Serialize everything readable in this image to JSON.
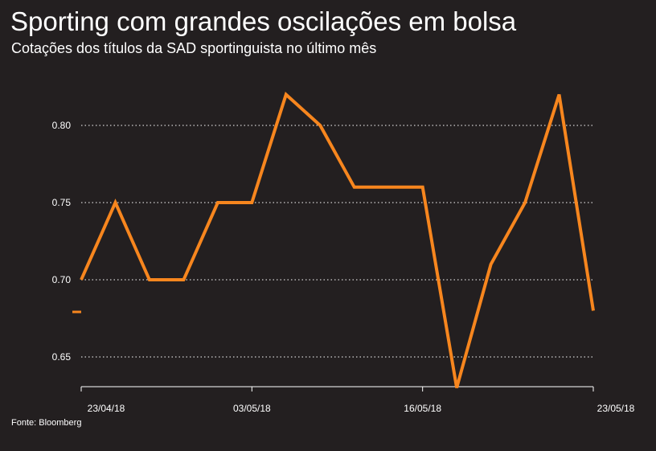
{
  "title": "Sporting com grandes oscilações em bolsa",
  "subtitle": "Cotações dos títulos da SAD sportinguista no último mês",
  "source": "Fonte: Bloomberg",
  "colors": {
    "background": "#231f20",
    "line": "#f7861e",
    "grid": "#ffffff",
    "text": "#ffffff"
  },
  "chart_data": {
    "type": "line",
    "title": "Sporting com grandes oscilações em bolsa",
    "subtitle": "Cotações dos títulos da SAD sportinguista no último mês",
    "x_tick_labels": [
      "23/04/18",
      "03/05/18",
      "16/05/18",
      "23/05/18"
    ],
    "y_tick_labels": [
      "0.65",
      "0.70",
      "0.75",
      "0.80"
    ],
    "ylim": [
      0.63,
      0.82
    ],
    "grid": "horizontal dotted",
    "series": [
      {
        "values": [
          0.7,
          0.75,
          0.7,
          0.7,
          0.75,
          0.75,
          0.82,
          0.8,
          0.76,
          0.76,
          0.76,
          0.63,
          0.71,
          0.75,
          0.82,
          0.68
        ]
      }
    ]
  }
}
